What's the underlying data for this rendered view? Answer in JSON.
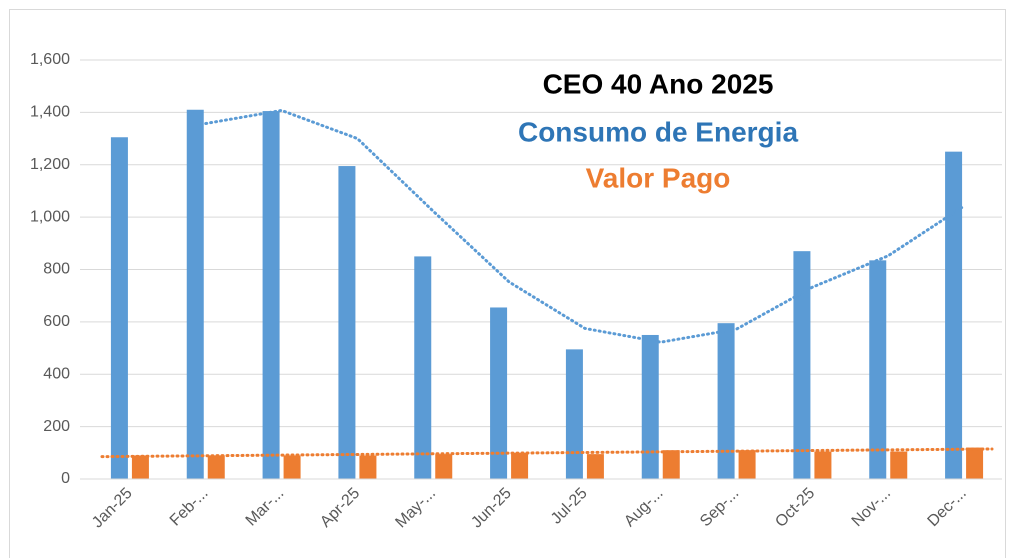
{
  "chart_data": {
    "type": "bar",
    "title": "CEO 40 Ano 2025",
    "categories": [
      "Jan-25",
      "Feb-...",
      "Mar-...",
      "Apr-25",
      "May-...",
      "Jun-25",
      "Jul-25",
      "Aug-...",
      "Sep-...",
      "Oct-25",
      "Nov-...",
      "Dec-..."
    ],
    "series": [
      {
        "name": "Consumo de Energia",
        "color": "#5b9bd5",
        "label_color": "#2e75b6",
        "values": [
          1305,
          1410,
          1405,
          1195,
          850,
          655,
          495,
          550,
          595,
          870,
          835,
          1250
        ],
        "trendline": "moving-average",
        "period": 2
      },
      {
        "name": "Valor Pago",
        "color": "#ed7d31",
        "label_color": "#ed7d31",
        "values": [
          90,
          90,
          90,
          90,
          95,
          100,
          95,
          110,
          110,
          105,
          105,
          120
        ],
        "trendline": "linear"
      }
    ],
    "ylim": [
      0,
      1600
    ],
    "yticks": [
      0,
      {
        "value": 200,
        "label": "200"
      },
      400,
      600,
      800,
      {
        "value": 1000,
        "label": "1,000"
      },
      {
        "value": 1200,
        "label": "1,200"
      },
      {
        "value": 1400,
        "label": "1,400"
      },
      {
        "value": 1600,
        "label": "1,600"
      }
    ],
    "grid": true
  }
}
